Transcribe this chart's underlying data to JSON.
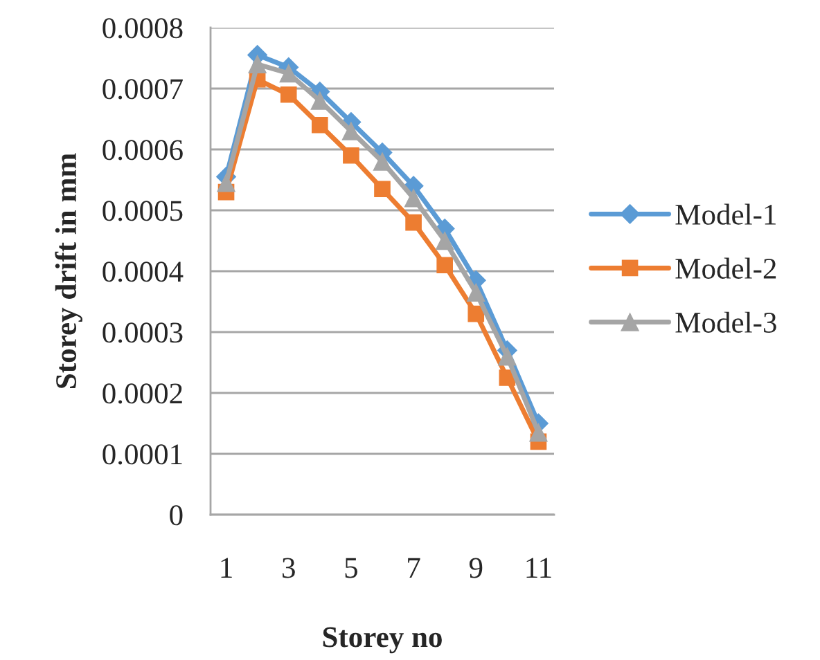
{
  "chart_data": {
    "type": "line",
    "xlabel": "Storey no",
    "ylabel": "Storey drift in mm",
    "categories": [
      "1",
      null,
      "3",
      null,
      "5",
      null,
      "7",
      null,
      "9",
      null,
      "11"
    ],
    "series": [
      {
        "name": "Model-1",
        "color": "#5b9bd5",
        "marker": "diamond",
        "values": [
          0.000555,
          0.000755,
          0.000735,
          0.000695,
          0.000645,
          0.000595,
          0.00054,
          0.00047,
          0.000385,
          0.00027,
          0.00015
        ]
      },
      {
        "name": "Model-2",
        "color": "#ed7d31",
        "marker": "square",
        "values": [
          0.00053,
          0.000715,
          0.00069,
          0.00064,
          0.00059,
          0.000535,
          0.00048,
          0.00041,
          0.00033,
          0.000225,
          0.00012
        ]
      },
      {
        "name": "Model-3",
        "color": "#a5a5a5",
        "marker": "triangle",
        "values": [
          0.000545,
          0.00074,
          0.000725,
          0.00068,
          0.00063,
          0.00058,
          0.00052,
          0.00045,
          0.000365,
          0.00026,
          0.000135
        ]
      }
    ],
    "ylim": [
      0,
      0.0008
    ],
    "yticks": [
      0,
      0.0001,
      0.0002,
      0.0003,
      0.0004,
      0.0005,
      0.0006,
      0.0007,
      0.0008
    ],
    "grid": "y",
    "legend": "right",
    "line_style": "solid"
  }
}
